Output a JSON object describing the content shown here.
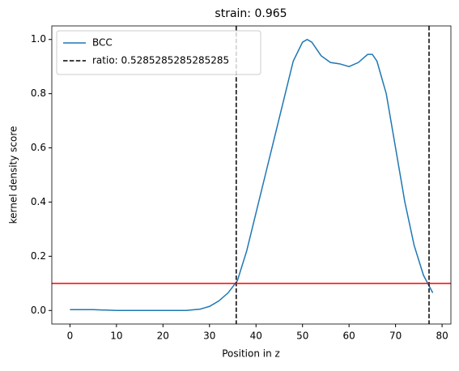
{
  "chart_data": {
    "type": "line",
    "title": "strain: 0.965",
    "xlabel": "Position in z",
    "ylabel": "kernel density score",
    "x": [
      0,
      5,
      10,
      15,
      20,
      25,
      28,
      30,
      32,
      34,
      36,
      38,
      40,
      42,
      44,
      46,
      48,
      50,
      51,
      52,
      54,
      56,
      58,
      60,
      62,
      64,
      65,
      66,
      68,
      70,
      72,
      74,
      76,
      78
    ],
    "series": [
      {
        "name": "BCC",
        "color": "#1f77b4",
        "values": [
          0.003,
          0.003,
          0.0,
          0.0,
          0.0,
          0.0,
          0.005,
          0.015,
          0.035,
          0.065,
          0.11,
          0.22,
          0.36,
          0.5,
          0.64,
          0.78,
          0.92,
          0.99,
          1.0,
          0.99,
          0.94,
          0.915,
          0.91,
          0.9,
          0.915,
          0.945,
          0.945,
          0.92,
          0.8,
          0.6,
          0.4,
          0.24,
          0.13,
          0.065
        ]
      }
    ],
    "vlines": {
      "name": "ratio: 0.5285285285285285",
      "color": "#000000",
      "values": [
        35.75,
        77.2
      ]
    },
    "hline": {
      "value": 0.1,
      "color": "#ff0000"
    },
    "xlim": [
      -3.9,
      81.9
    ],
    "ylim": [
      -0.05,
      1.05
    ],
    "xticks": [
      0,
      10,
      20,
      30,
      40,
      50,
      60,
      70,
      80
    ],
    "yticks": [
      {
        "value": 0,
        "label": "0.0"
      },
      {
        "value": 0.2,
        "label": "0.2"
      },
      {
        "value": 0.4,
        "label": "0.4"
      },
      {
        "value": 0.6,
        "label": "0.6"
      },
      {
        "value": 0.8,
        "label": "0.8"
      },
      {
        "value": 1,
        "label": "1.0"
      }
    ],
    "legend": "upper left"
  }
}
